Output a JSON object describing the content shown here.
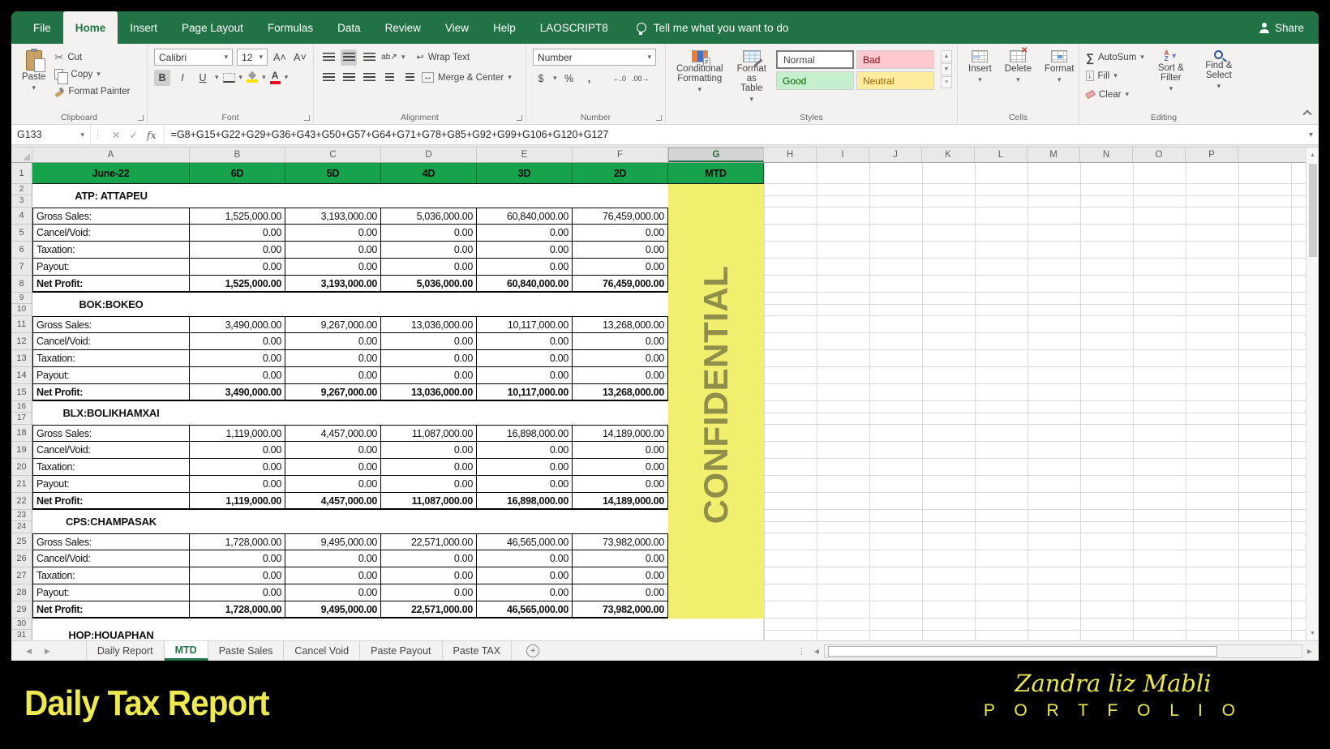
{
  "colors": {
    "excel_green": "#217346",
    "header_green": "#17A24C",
    "confidential_bg": "#F1EF6E",
    "confidential_fg": "#8F8F49",
    "footer_yellow": "#EDE94E"
  },
  "icons": {
    "dropdown": "▾",
    "scissors": "✂",
    "check": "✓",
    "cross": "✕",
    "fx": "fx",
    "sigma": "∑",
    "dollar": "$",
    "percent": "%",
    "comma": ",",
    "inc_decimal": "←.0",
    "dec_decimal": ".00→",
    "up": "▲",
    "down": "▼",
    "left": "◀",
    "right": "▶",
    "plus": "+",
    "ellipsis": "⋮",
    "orientation": "ab↗",
    "wrap_arrow": "↩",
    "merge_arrow": "↔",
    "grow_font": "A˄",
    "shrink_font": "A˅",
    "funnel": "▼"
  },
  "menu": {
    "tabs": [
      "File",
      "Home",
      "Insert",
      "Page Layout",
      "Formulas",
      "Data",
      "Review",
      "View",
      "Help",
      "LAOSCRIPT8"
    ],
    "active": "Home",
    "tell_me": "Tell me what you want to do",
    "share": "Share"
  },
  "ribbon": {
    "clipboard": {
      "paste": "Paste",
      "cut": "Cut",
      "copy": "Copy",
      "format_painter": "Format Painter",
      "group": "Clipboard"
    },
    "font": {
      "family": "Calibri",
      "size": "12",
      "bold": "B",
      "italic": "I",
      "underline": "U",
      "group": "Font"
    },
    "alignment": {
      "wrap_text": "Wrap Text",
      "merge_center": "Merge & Center",
      "group": "Alignment"
    },
    "number": {
      "format": "Number",
      "group": "Number"
    },
    "styles": {
      "conditional_formatting": "Conditional Formatting",
      "format_as_table": "Format as Table",
      "gallery": [
        {
          "label": "Normal",
          "bg": "#FFFFFF",
          "fg": "#444444",
          "selected": true
        },
        {
          "label": "Bad",
          "bg": "#FFC7CE",
          "fg": "#9C0006",
          "selected": false
        },
        {
          "label": "Good",
          "bg": "#C6EFCE",
          "fg": "#006100",
          "selected": false
        },
        {
          "label": "Neutral",
          "bg": "#FFEB9C",
          "fg": "#9C6500",
          "selected": false
        }
      ],
      "group": "Styles"
    },
    "cells": {
      "insert": "Insert",
      "delete": "Delete",
      "format": "Format",
      "group": "Cells"
    },
    "editing": {
      "autosum": "AutoSum",
      "fill": "Fill",
      "clear": "Clear",
      "sort_filter": "Sort & Filter",
      "find_select": "Find & Select",
      "group": "Editing"
    }
  },
  "formula_bar": {
    "name_box": "G133",
    "formula": "=G8+G15+G22+G29+G36+G43+G50+G57+G64+G71+G78+G85+G92+G99+G106+G120+G127"
  },
  "grid": {
    "columns": [
      "A",
      "B",
      "C",
      "D",
      "E",
      "F",
      "G",
      "H",
      "I",
      "J",
      "K",
      "L",
      "M",
      "N",
      "O",
      "P"
    ],
    "selected_column": "G",
    "header_row": {
      "row_num": "1",
      "month": "June-22",
      "day_headers": [
        "6D",
        "5D",
        "4D",
        "3D",
        "2D"
      ],
      "mtd": "MTD"
    },
    "watermark": "CONFIDENTIAL",
    "sections": [
      {
        "title": "ATP:  ATTAPEU",
        "gap_rows": [
          "2",
          "3"
        ],
        "rows": [
          {
            "num": "4",
            "label": "Gross Sales:",
            "bold": false,
            "values": [
              "1,525,000.00",
              "3,193,000.00",
              "5,036,000.00",
              "60,840,000.00",
              "76,459,000.00"
            ]
          },
          {
            "num": "5",
            "label": "Cancel/Void:",
            "bold": false,
            "values": [
              "0.00",
              "0.00",
              "0.00",
              "0.00",
              "0.00"
            ]
          },
          {
            "num": "6",
            "label": "Taxation:",
            "bold": false,
            "values": [
              "0.00",
              "0.00",
              "0.00",
              "0.00",
              "0.00"
            ]
          },
          {
            "num": "7",
            "label": "Payout:",
            "bold": false,
            "values": [
              "0.00",
              "0.00",
              "0.00",
              "0.00",
              "0.00"
            ]
          },
          {
            "num": "8",
            "label": "Net Profit:",
            "bold": true,
            "values": [
              "1,525,000.00",
              "3,193,000.00",
              "5,036,000.00",
              "60,840,000.00",
              "76,459,000.00"
            ]
          }
        ]
      },
      {
        "title": "BOK:BOKEO",
        "gap_rows": [
          "9",
          "10"
        ],
        "rows": [
          {
            "num": "11",
            "label": "Gross Sales:",
            "bold": false,
            "values": [
              "3,490,000.00",
              "9,267,000.00",
              "13,036,000.00",
              "10,117,000.00",
              "13,268,000.00"
            ]
          },
          {
            "num": "12",
            "label": "Cancel/Void:",
            "bold": false,
            "values": [
              "0.00",
              "0.00",
              "0.00",
              "0.00",
              "0.00"
            ]
          },
          {
            "num": "13",
            "label": "Taxation:",
            "bold": false,
            "values": [
              "0.00",
              "0.00",
              "0.00",
              "0.00",
              "0.00"
            ]
          },
          {
            "num": "14",
            "label": "Payout:",
            "bold": false,
            "values": [
              "0.00",
              "0.00",
              "0.00",
              "0.00",
              "0.00"
            ]
          },
          {
            "num": "15",
            "label": "Net Profit:",
            "bold": true,
            "values": [
              "3,490,000.00",
              "9,267,000.00",
              "13,036,000.00",
              "10,117,000.00",
              "13,268,000.00"
            ]
          }
        ]
      },
      {
        "title": "BLX:BOLIKHAMXAI",
        "gap_rows": [
          "16",
          "17"
        ],
        "rows": [
          {
            "num": "18",
            "label": "Gross Sales:",
            "bold": false,
            "values": [
              "1,119,000.00",
              "4,457,000.00",
              "11,087,000.00",
              "16,898,000.00",
              "14,189,000.00"
            ]
          },
          {
            "num": "19",
            "label": "Cancel/Void:",
            "bold": false,
            "values": [
              "0.00",
              "0.00",
              "0.00",
              "0.00",
              "0.00"
            ]
          },
          {
            "num": "20",
            "label": "Taxation:",
            "bold": false,
            "values": [
              "0.00",
              "0.00",
              "0.00",
              "0.00",
              "0.00"
            ]
          },
          {
            "num": "21",
            "label": "Payout:",
            "bold": false,
            "values": [
              "0.00",
              "0.00",
              "0.00",
              "0.00",
              "0.00"
            ]
          },
          {
            "num": "22",
            "label": "Net Profit:",
            "bold": true,
            "values": [
              "1,119,000.00",
              "4,457,000.00",
              "11,087,000.00",
              "16,898,000.00",
              "14,189,000.00"
            ]
          }
        ]
      },
      {
        "title": "CPS:CHAMPASAK",
        "gap_rows": [
          "23",
          "24"
        ],
        "rows": [
          {
            "num": "25",
            "label": "Gross Sales:",
            "bold": false,
            "values": [
              "1,728,000.00",
              "9,495,000.00",
              "22,571,000.00",
              "46,565,000.00",
              "73,982,000.00"
            ]
          },
          {
            "num": "26",
            "label": "Cancel/Void:",
            "bold": false,
            "values": [
              "0.00",
              "0.00",
              "0.00",
              "0.00",
              "0.00"
            ]
          },
          {
            "num": "27",
            "label": "Taxation:",
            "bold": false,
            "values": [
              "0.00",
              "0.00",
              "0.00",
              "0.00",
              "0.00"
            ]
          },
          {
            "num": "28",
            "label": "Payout:",
            "bold": false,
            "values": [
              "0.00",
              "0.00",
              "0.00",
              "0.00",
              "0.00"
            ]
          },
          {
            "num": "29",
            "label": "Net Profit:",
            "bold": true,
            "values": [
              "1,728,000.00",
              "9,495,000.00",
              "22,571,000.00",
              "46,565,000.00",
              "73,982,000.00"
            ]
          }
        ]
      },
      {
        "title": "HOP:HOUAPHAN",
        "gap_rows": [
          "30",
          "31"
        ],
        "rows": []
      }
    ]
  },
  "sheet_bar": {
    "tabs": [
      "Daily Report",
      "MTD",
      "Paste Sales",
      "Cancel Void",
      "Paste Payout",
      "Paste TAX"
    ],
    "active": "MTD"
  },
  "footer": {
    "title": "Daily Tax Report",
    "signature": "Zandra liz Mabli",
    "portfolio": "P O R T F O L I O"
  }
}
